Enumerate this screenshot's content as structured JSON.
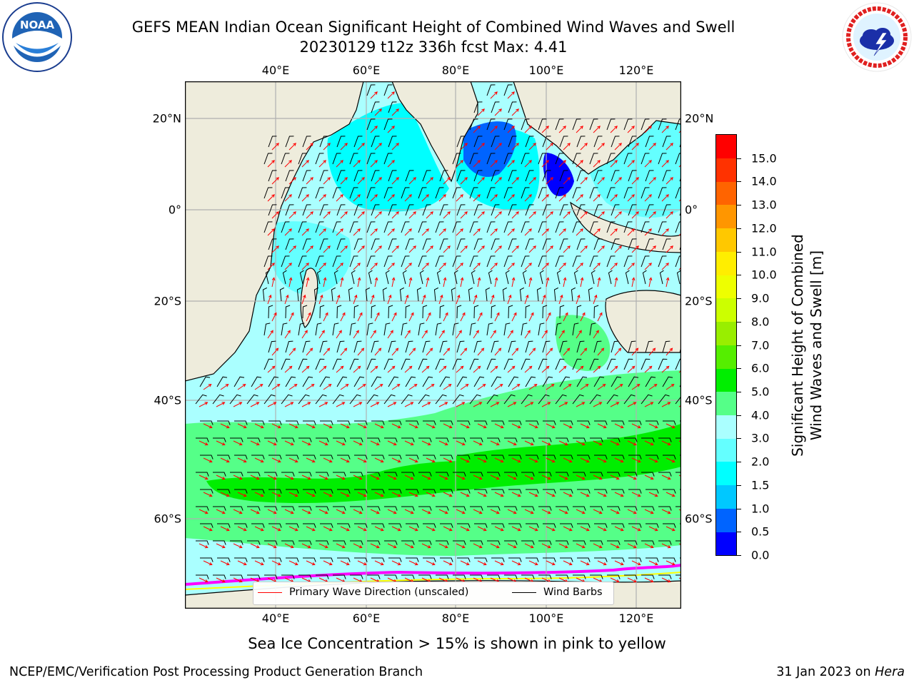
{
  "title": {
    "line1": "GEFS MEAN Indian Ocean Significant Height of Combined Wind Waves and Swell",
    "line2": "20230129 t12z 336h fcst   Max: 4.41"
  },
  "logos": {
    "left": {
      "name": "noaa-logo",
      "text": "NOAA",
      "ring_text": "NATIONAL OCEANIC AND ATMOSPHERIC ADMINISTRATION · U.S. DEPARTMENT OF COMMERCE"
    },
    "right": {
      "name": "nws-logo",
      "ring_text": "NATIONAL WEATHER SERVICE"
    }
  },
  "map": {
    "lon_ticks_top": [
      "40°E",
      "60°E",
      "80°E",
      "100°E",
      "120°E"
    ],
    "lon_ticks_bottom": [
      "40°E",
      "60°E",
      "80°E",
      "100°E",
      "120°E"
    ],
    "lat_ticks_left": [
      "20°N",
      "0°",
      "20°S",
      "40°S",
      "60°S"
    ],
    "lat_ticks_right": [
      "20°N",
      "0°",
      "20°S",
      "40°S",
      "60°S"
    ],
    "land_color": "#eeecdc",
    "grid_color": "#b0b0b0"
  },
  "legend": {
    "wave_label": "Primary Wave Direction (unscaled)",
    "wave_color": "#ff0000",
    "barb_label": "Wind Barbs",
    "barb_color": "#000000"
  },
  "colorbar": {
    "title_line1": "Significant Height of Combined",
    "title_line2": "Wind Waves and Swell [m]",
    "labels": [
      "0.0",
      "0.5",
      "1.0",
      "1.5",
      "2.0",
      "3.0",
      "4.0",
      "5.0",
      "6.0",
      "7.0",
      "8.0",
      "9.0",
      "10.0",
      "11.0",
      "12.0",
      "13.0",
      "14.0",
      "15.0"
    ],
    "colors": [
      "#0000ff",
      "#0064ff",
      "#00c8ff",
      "#00ffff",
      "#64ffff",
      "#aaffff",
      "#55ff88",
      "#00ee00",
      "#55ee00",
      "#99ee00",
      "#ccff00",
      "#eeff00",
      "#ffee00",
      "#ffc800",
      "#ff9600",
      "#ff6400",
      "#ff3200",
      "#ff0000"
    ]
  },
  "subcaption": "Sea Ice Concentration > 15% is shown in pink to yellow",
  "footer": {
    "left": "NCEP/EMC/Verification Post Processing Product Generation Branch",
    "right_prefix": "31 Jan 2023 on ",
    "right_host": "Hera"
  }
}
